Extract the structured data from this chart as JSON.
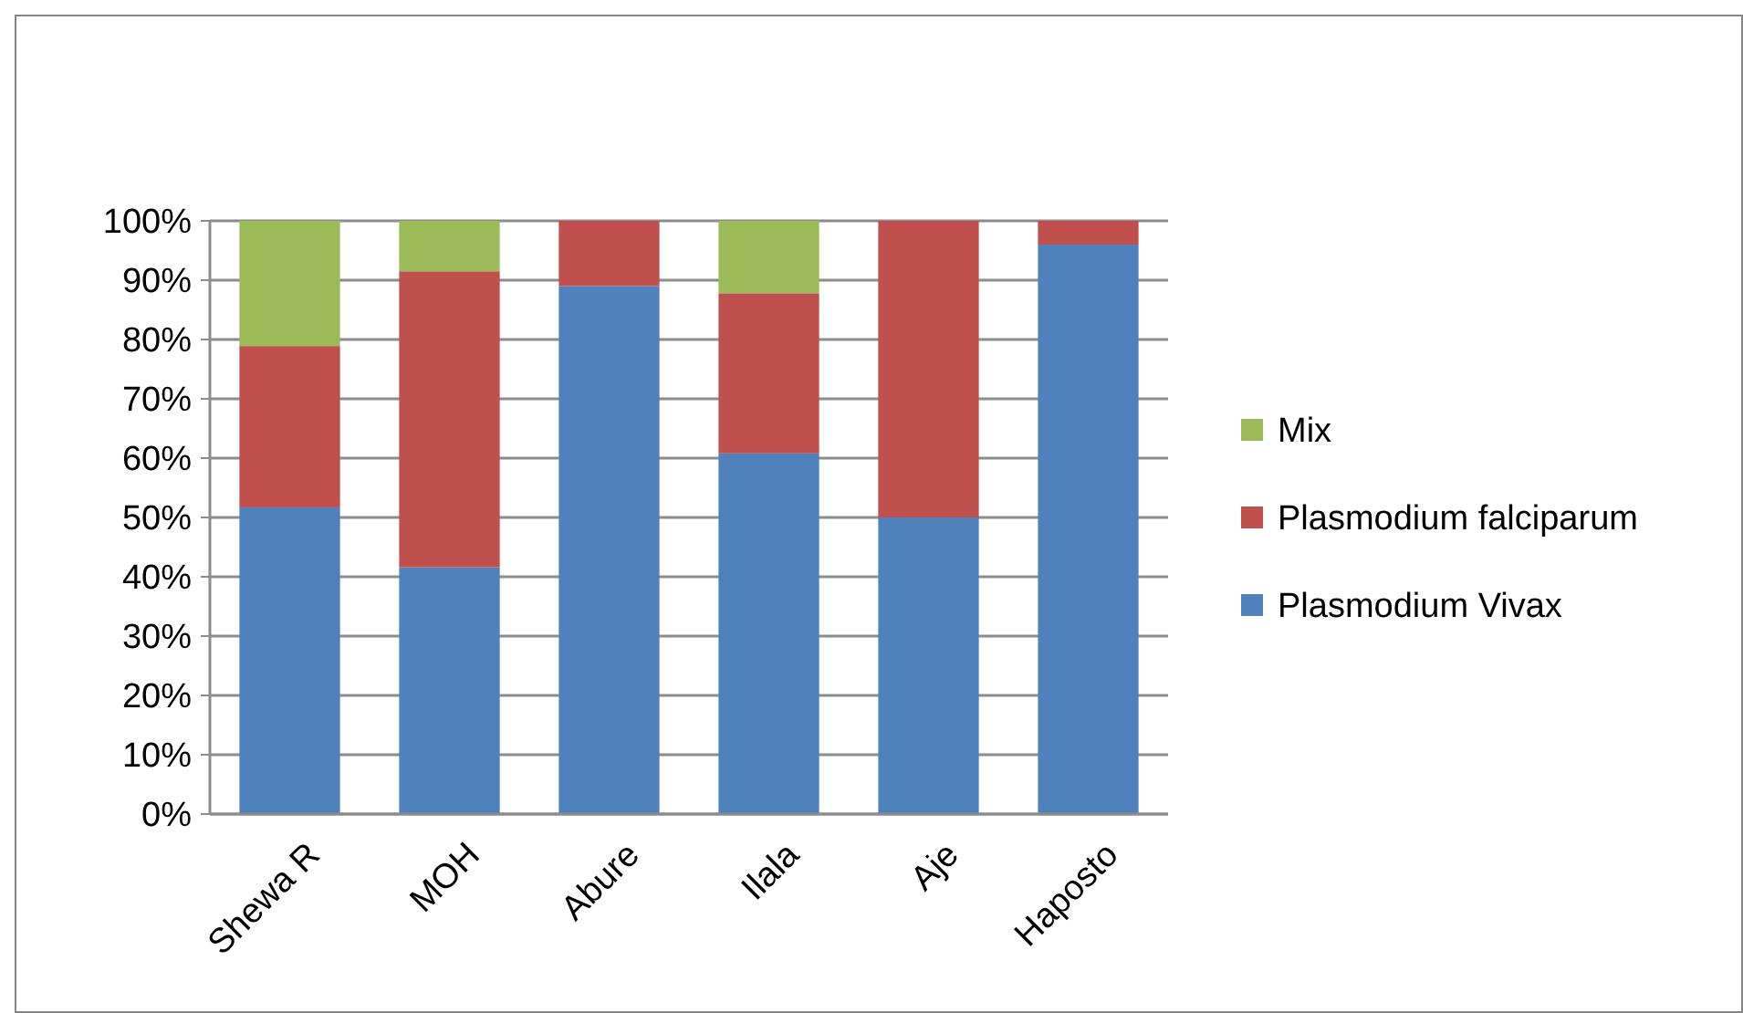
{
  "chart_data": {
    "type": "bar",
    "stacked": true,
    "categories": [
      "Shewa R",
      "MOH",
      "Abure",
      "Ilala",
      "Aje",
      "Haposto"
    ],
    "series": [
      {
        "name": "Plasmodium Vivax",
        "color": "#4f81bd",
        "values": [
          51.7,
          41.6,
          89,
          60.8,
          50,
          96
        ]
      },
      {
        "name": "Plasmodium falciparum",
        "color": "#c0504d",
        "values": [
          27.2,
          49.9,
          11,
          27,
          50,
          4
        ]
      },
      {
        "name": "Mix",
        "color": "#9bbb59",
        "values": [
          21.1,
          8.5,
          0,
          12.2,
          0,
          0
        ]
      }
    ],
    "ylim": [
      0,
      100
    ],
    "yticks": [
      {
        "value": 0,
        "label": "0%"
      },
      {
        "value": 10,
        "label": "10%"
      },
      {
        "value": 20,
        "label": "20%"
      },
      {
        "value": 30,
        "label": "30%"
      },
      {
        "value": 40,
        "label": "40%"
      },
      {
        "value": 50,
        "label": "50%"
      },
      {
        "value": 60,
        "label": "60%"
      },
      {
        "value": 70,
        "label": "70%"
      },
      {
        "value": 80,
        "label": "80%"
      },
      {
        "value": 90,
        "label": "90%"
      },
      {
        "value": 100,
        "label": "100%"
      }
    ],
    "grid": "y",
    "legend": "right"
  }
}
